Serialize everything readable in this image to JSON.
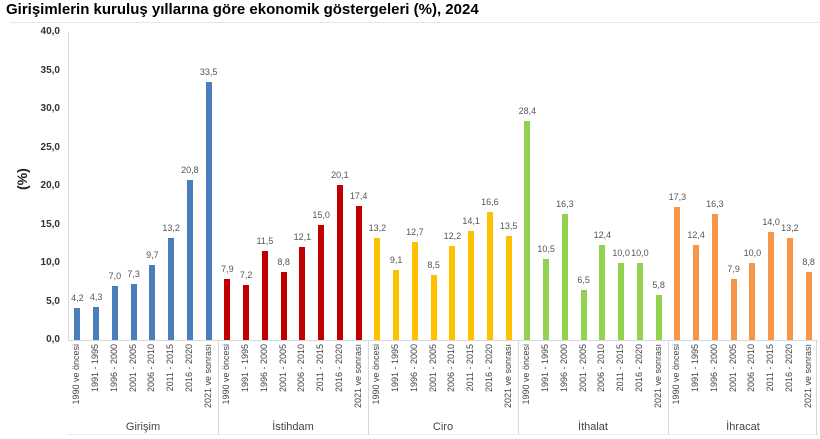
{
  "title": "Girişimlerin kuruluş yıllarına göre ekonomik göstergeleri (%), 2024",
  "chart_data": {
    "type": "bar",
    "title": "Girişimlerin kuruluş yıllarına göre ekonomik göstergeleri (%), 2024",
    "xlabel": "",
    "ylabel": "(%)",
    "ylim": [
      0,
      40
    ],
    "yticks": [
      "0,0",
      "5,0",
      "10,0",
      "15,0",
      "20,0",
      "25,0",
      "30,0",
      "35,0",
      "40,0"
    ],
    "grid": false,
    "legend": "none",
    "categories": [
      "1990 ve öncesi",
      "1991 - 1995",
      "1996 - 2000",
      "2001 - 2005",
      "2006 - 2010",
      "2011 - 2015",
      "2016 - 2020",
      "2021 ve sonrası"
    ],
    "series": [
      {
        "name": "Girişim",
        "color": "#4a7ebb",
        "values": [
          4.2,
          4.3,
          7.0,
          7.3,
          9.7,
          13.2,
          20.8,
          33.5
        ],
        "labels": [
          "4,2",
          "4,3",
          "7,0",
          "7,3",
          "9,7",
          "13,2",
          "20,8",
          "33,5"
        ]
      },
      {
        "name": "İstihdam",
        "color": "#c00000",
        "values": [
          7.9,
          7.2,
          11.5,
          8.8,
          12.1,
          15.0,
          20.1,
          17.4
        ],
        "labels": [
          "7,9",
          "7,2",
          "11,5",
          "8,8",
          "12,1",
          "15,0",
          "20,1",
          "17,4"
        ]
      },
      {
        "name": "Ciro",
        "color": "#ffc000",
        "values": [
          13.2,
          9.1,
          12.7,
          8.5,
          12.2,
          14.1,
          16.6,
          13.5
        ],
        "labels": [
          "13,2",
          "9,1",
          "12,7",
          "8,5",
          "12,2",
          "14,1",
          "16,6",
          "13,5"
        ]
      },
      {
        "name": "İthalat",
        "color": "#92d050",
        "values": [
          28.4,
          10.5,
          16.3,
          6.5,
          12.4,
          10.0,
          10.0,
          5.8
        ],
        "labels": [
          "28,4",
          "10,5",
          "16,3",
          "6,5",
          "12,4",
          "10,0",
          "10,0",
          "5,8"
        ]
      },
      {
        "name": "İhracat",
        "color": "#f79646",
        "values": [
          17.3,
          12.4,
          16.3,
          7.9,
          10.0,
          14.0,
          13.2,
          8.8
        ],
        "labels": [
          "17,3",
          "12,4",
          "16,3",
          "7,9",
          "10,0",
          "14,0",
          "13,2",
          "8,8"
        ]
      }
    ]
  }
}
